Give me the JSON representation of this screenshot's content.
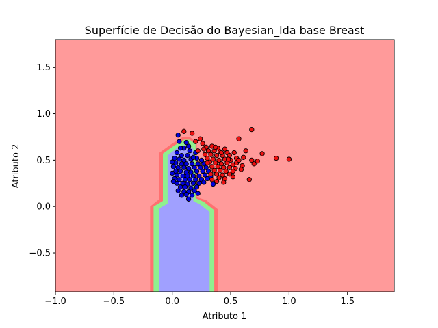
{
  "chart_data": {
    "type": "scatter",
    "title": "Superfície de Decisão do Bayesian_lda base Breast",
    "xlabel": "Atributo 1",
    "ylabel": "Atributo 2",
    "xlim": [
      -1.0,
      1.9
    ],
    "ylim": [
      -0.92,
      1.8
    ],
    "xticks": [
      -1.0,
      -0.5,
      0.0,
      0.5,
      1.0,
      1.5
    ],
    "xtick_labels": [
      "−1.0",
      "−0.5",
      "0.0",
      "0.5",
      "1.0",
      "1.5"
    ],
    "yticks": [
      -0.5,
      0.0,
      0.5,
      1.0,
      1.5
    ],
    "ytick_labels": [
      "−0.5",
      "0.0",
      "0.5",
      "1.0",
      "1.5"
    ],
    "grid": false,
    "legend": "none",
    "colors": {
      "background_region": "#ff9a9a",
      "outer_band": "#ff7070",
      "green_band": "#8ff08f",
      "inner_region": "#a0a0ff",
      "blue_points": "#0000dd",
      "red_points": "#ee1111",
      "marker_edge": "#000000"
    },
    "decision_regions": [
      {
        "class": "outer-band",
        "polygon": [
          [
            -0.19,
            -0.92
          ],
          [
            -0.19,
            0.0
          ],
          [
            -0.11,
            0.08
          ],
          [
            -0.11,
            0.58
          ],
          [
            -0.01,
            0.67
          ],
          [
            0.09,
            0.75
          ],
          [
            0.15,
            0.75
          ],
          [
            0.21,
            0.69
          ],
          [
            0.21,
            0.1
          ],
          [
            0.29,
            0.07
          ],
          [
            0.39,
            -0.03
          ],
          [
            0.39,
            -0.92
          ]
        ]
      },
      {
        "class": "green-band",
        "polygon": [
          [
            -0.16,
            -0.92
          ],
          [
            -0.16,
            0.0
          ],
          [
            -0.08,
            0.06
          ],
          [
            -0.08,
            0.57
          ],
          [
            0.02,
            0.66
          ],
          [
            0.1,
            0.72
          ],
          [
            0.15,
            0.72
          ],
          [
            0.2,
            0.67
          ],
          [
            0.2,
            0.09
          ],
          [
            0.27,
            0.05
          ],
          [
            0.36,
            -0.04
          ],
          [
            0.36,
            -0.92
          ]
        ]
      },
      {
        "class": "inner-region",
        "polygon": [
          [
            -0.11,
            -0.92
          ],
          [
            -0.11,
            -0.02
          ],
          [
            -0.04,
            0.03
          ],
          [
            -0.04,
            0.55
          ],
          [
            0.04,
            0.63
          ],
          [
            0.1,
            0.66
          ],
          [
            0.14,
            0.66
          ],
          [
            0.18,
            0.62
          ],
          [
            0.18,
            0.06
          ],
          [
            0.24,
            0.02
          ],
          [
            0.32,
            -0.06
          ],
          [
            0.32,
            -0.92
          ]
        ]
      }
    ],
    "series": [
      {
        "class": "blue",
        "points": [
          [
            0.05,
            0.77
          ],
          [
            0.12,
            0.69
          ],
          [
            0.1,
            0.63
          ],
          [
            0.04,
            0.58
          ],
          [
            0.15,
            0.6
          ],
          [
            0.2,
            0.58
          ],
          [
            0.08,
            0.55
          ],
          [
            0.13,
            0.55
          ],
          [
            0.02,
            0.52
          ],
          [
            0.06,
            0.51
          ],
          [
            0.1,
            0.5
          ],
          [
            0.16,
            0.51
          ],
          [
            0.21,
            0.52
          ],
          [
            0.25,
            0.5
          ],
          [
            0.03,
            0.47
          ],
          [
            0.08,
            0.46
          ],
          [
            0.12,
            0.46
          ],
          [
            0.17,
            0.46
          ],
          [
            0.22,
            0.46
          ],
          [
            0.27,
            0.46
          ],
          [
            0.01,
            0.43
          ],
          [
            0.05,
            0.42
          ],
          [
            0.1,
            0.42
          ],
          [
            0.14,
            0.41
          ],
          [
            0.19,
            0.42
          ],
          [
            0.24,
            0.42
          ],
          [
            0.29,
            0.42
          ],
          [
            0.03,
            0.38
          ],
          [
            0.07,
            0.38
          ],
          [
            0.12,
            0.37
          ],
          [
            0.16,
            0.37
          ],
          [
            0.21,
            0.38
          ],
          [
            0.26,
            0.38
          ],
          [
            0.31,
            0.38
          ],
          [
            0.04,
            0.34
          ],
          [
            0.09,
            0.33
          ],
          [
            0.13,
            0.33
          ],
          [
            0.18,
            0.33
          ],
          [
            0.23,
            0.33
          ],
          [
            0.28,
            0.34
          ],
          [
            0.02,
            0.3
          ],
          [
            0.06,
            0.29
          ],
          [
            0.11,
            0.29
          ],
          [
            0.15,
            0.29
          ],
          [
            0.2,
            0.29
          ],
          [
            0.25,
            0.29
          ],
          [
            0.3,
            0.3
          ],
          [
            0.04,
            0.25
          ],
          [
            0.09,
            0.25
          ],
          [
            0.13,
            0.24
          ],
          [
            0.18,
            0.25
          ],
          [
            0.23,
            0.25
          ],
          [
            0.27,
            0.26
          ],
          [
            0.07,
            0.21
          ],
          [
            0.11,
            0.21
          ],
          [
            0.16,
            0.2
          ],
          [
            0.21,
            0.21
          ],
          [
            0.05,
            0.17
          ],
          [
            0.1,
            0.16
          ],
          [
            0.14,
            0.16
          ],
          [
            0.19,
            0.17
          ],
          [
            0.12,
            0.13
          ],
          [
            0.17,
            0.12
          ],
          [
            0.01,
            0.27
          ],
          [
            0.0,
            0.36
          ],
          [
            0.0,
            0.48
          ],
          [
            0.35,
            0.24
          ],
          [
            0.22,
            0.14
          ],
          [
            0.08,
            0.12
          ],
          [
            0.14,
            0.08
          ],
          [
            0.18,
            0.53
          ],
          [
            0.07,
            0.63
          ],
          [
            0.33,
            0.33
          ],
          [
            0.06,
            0.7
          ],
          [
            0.14,
            0.65
          ]
        ]
      },
      {
        "class": "red",
        "points": [
          [
            0.1,
            0.81
          ],
          [
            0.17,
            0.79
          ],
          [
            0.24,
            0.73
          ],
          [
            0.68,
            0.83
          ],
          [
            0.2,
            0.7
          ],
          [
            0.26,
            0.68
          ],
          [
            0.57,
            0.73
          ],
          [
            0.34,
            0.65
          ],
          [
            0.29,
            0.64
          ],
          [
            0.39,
            0.63
          ],
          [
            0.45,
            0.62
          ],
          [
            0.31,
            0.6
          ],
          [
            0.36,
            0.6
          ],
          [
            0.41,
            0.59
          ],
          [
            0.47,
            0.58
          ],
          [
            0.53,
            0.58
          ],
          [
            0.63,
            0.6
          ],
          [
            0.77,
            0.57
          ],
          [
            0.28,
            0.56
          ],
          [
            0.33,
            0.56
          ],
          [
            0.38,
            0.55
          ],
          [
            0.43,
            0.55
          ],
          [
            0.49,
            0.55
          ],
          [
            0.55,
            0.52
          ],
          [
            0.61,
            0.53
          ],
          [
            0.89,
            0.52
          ],
          [
            1.0,
            0.51
          ],
          [
            0.3,
            0.52
          ],
          [
            0.35,
            0.51
          ],
          [
            0.4,
            0.5
          ],
          [
            0.45,
            0.51
          ],
          [
            0.5,
            0.5
          ],
          [
            0.68,
            0.5
          ],
          [
            0.73,
            0.49
          ],
          [
            0.32,
            0.48
          ],
          [
            0.37,
            0.47
          ],
          [
            0.42,
            0.46
          ],
          [
            0.47,
            0.47
          ],
          [
            0.52,
            0.45
          ],
          [
            0.7,
            0.46
          ],
          [
            0.34,
            0.43
          ],
          [
            0.39,
            0.43
          ],
          [
            0.44,
            0.42
          ],
          [
            0.49,
            0.42
          ],
          [
            0.54,
            0.41
          ],
          [
            0.6,
            0.44
          ],
          [
            0.36,
            0.39
          ],
          [
            0.41,
            0.39
          ],
          [
            0.46,
            0.38
          ],
          [
            0.52,
            0.38
          ],
          [
            0.59,
            0.4
          ],
          [
            0.33,
            0.35
          ],
          [
            0.38,
            0.35
          ],
          [
            0.43,
            0.34
          ],
          [
            0.49,
            0.35
          ],
          [
            0.4,
            0.31
          ],
          [
            0.45,
            0.3
          ],
          [
            0.52,
            0.32
          ],
          [
            0.38,
            0.27
          ],
          [
            0.44,
            0.26
          ],
          [
            0.66,
            0.29
          ],
          [
            0.27,
            0.62
          ],
          [
            0.22,
            0.6
          ],
          [
            0.3,
            0.47
          ],
          [
            0.42,
            0.58
          ],
          [
            0.55,
            0.47
          ],
          [
            0.34,
            0.29
          ],
          [
            0.48,
            0.51
          ],
          [
            0.37,
            0.64
          ],
          [
            0.57,
            0.5
          ]
        ]
      }
    ]
  }
}
